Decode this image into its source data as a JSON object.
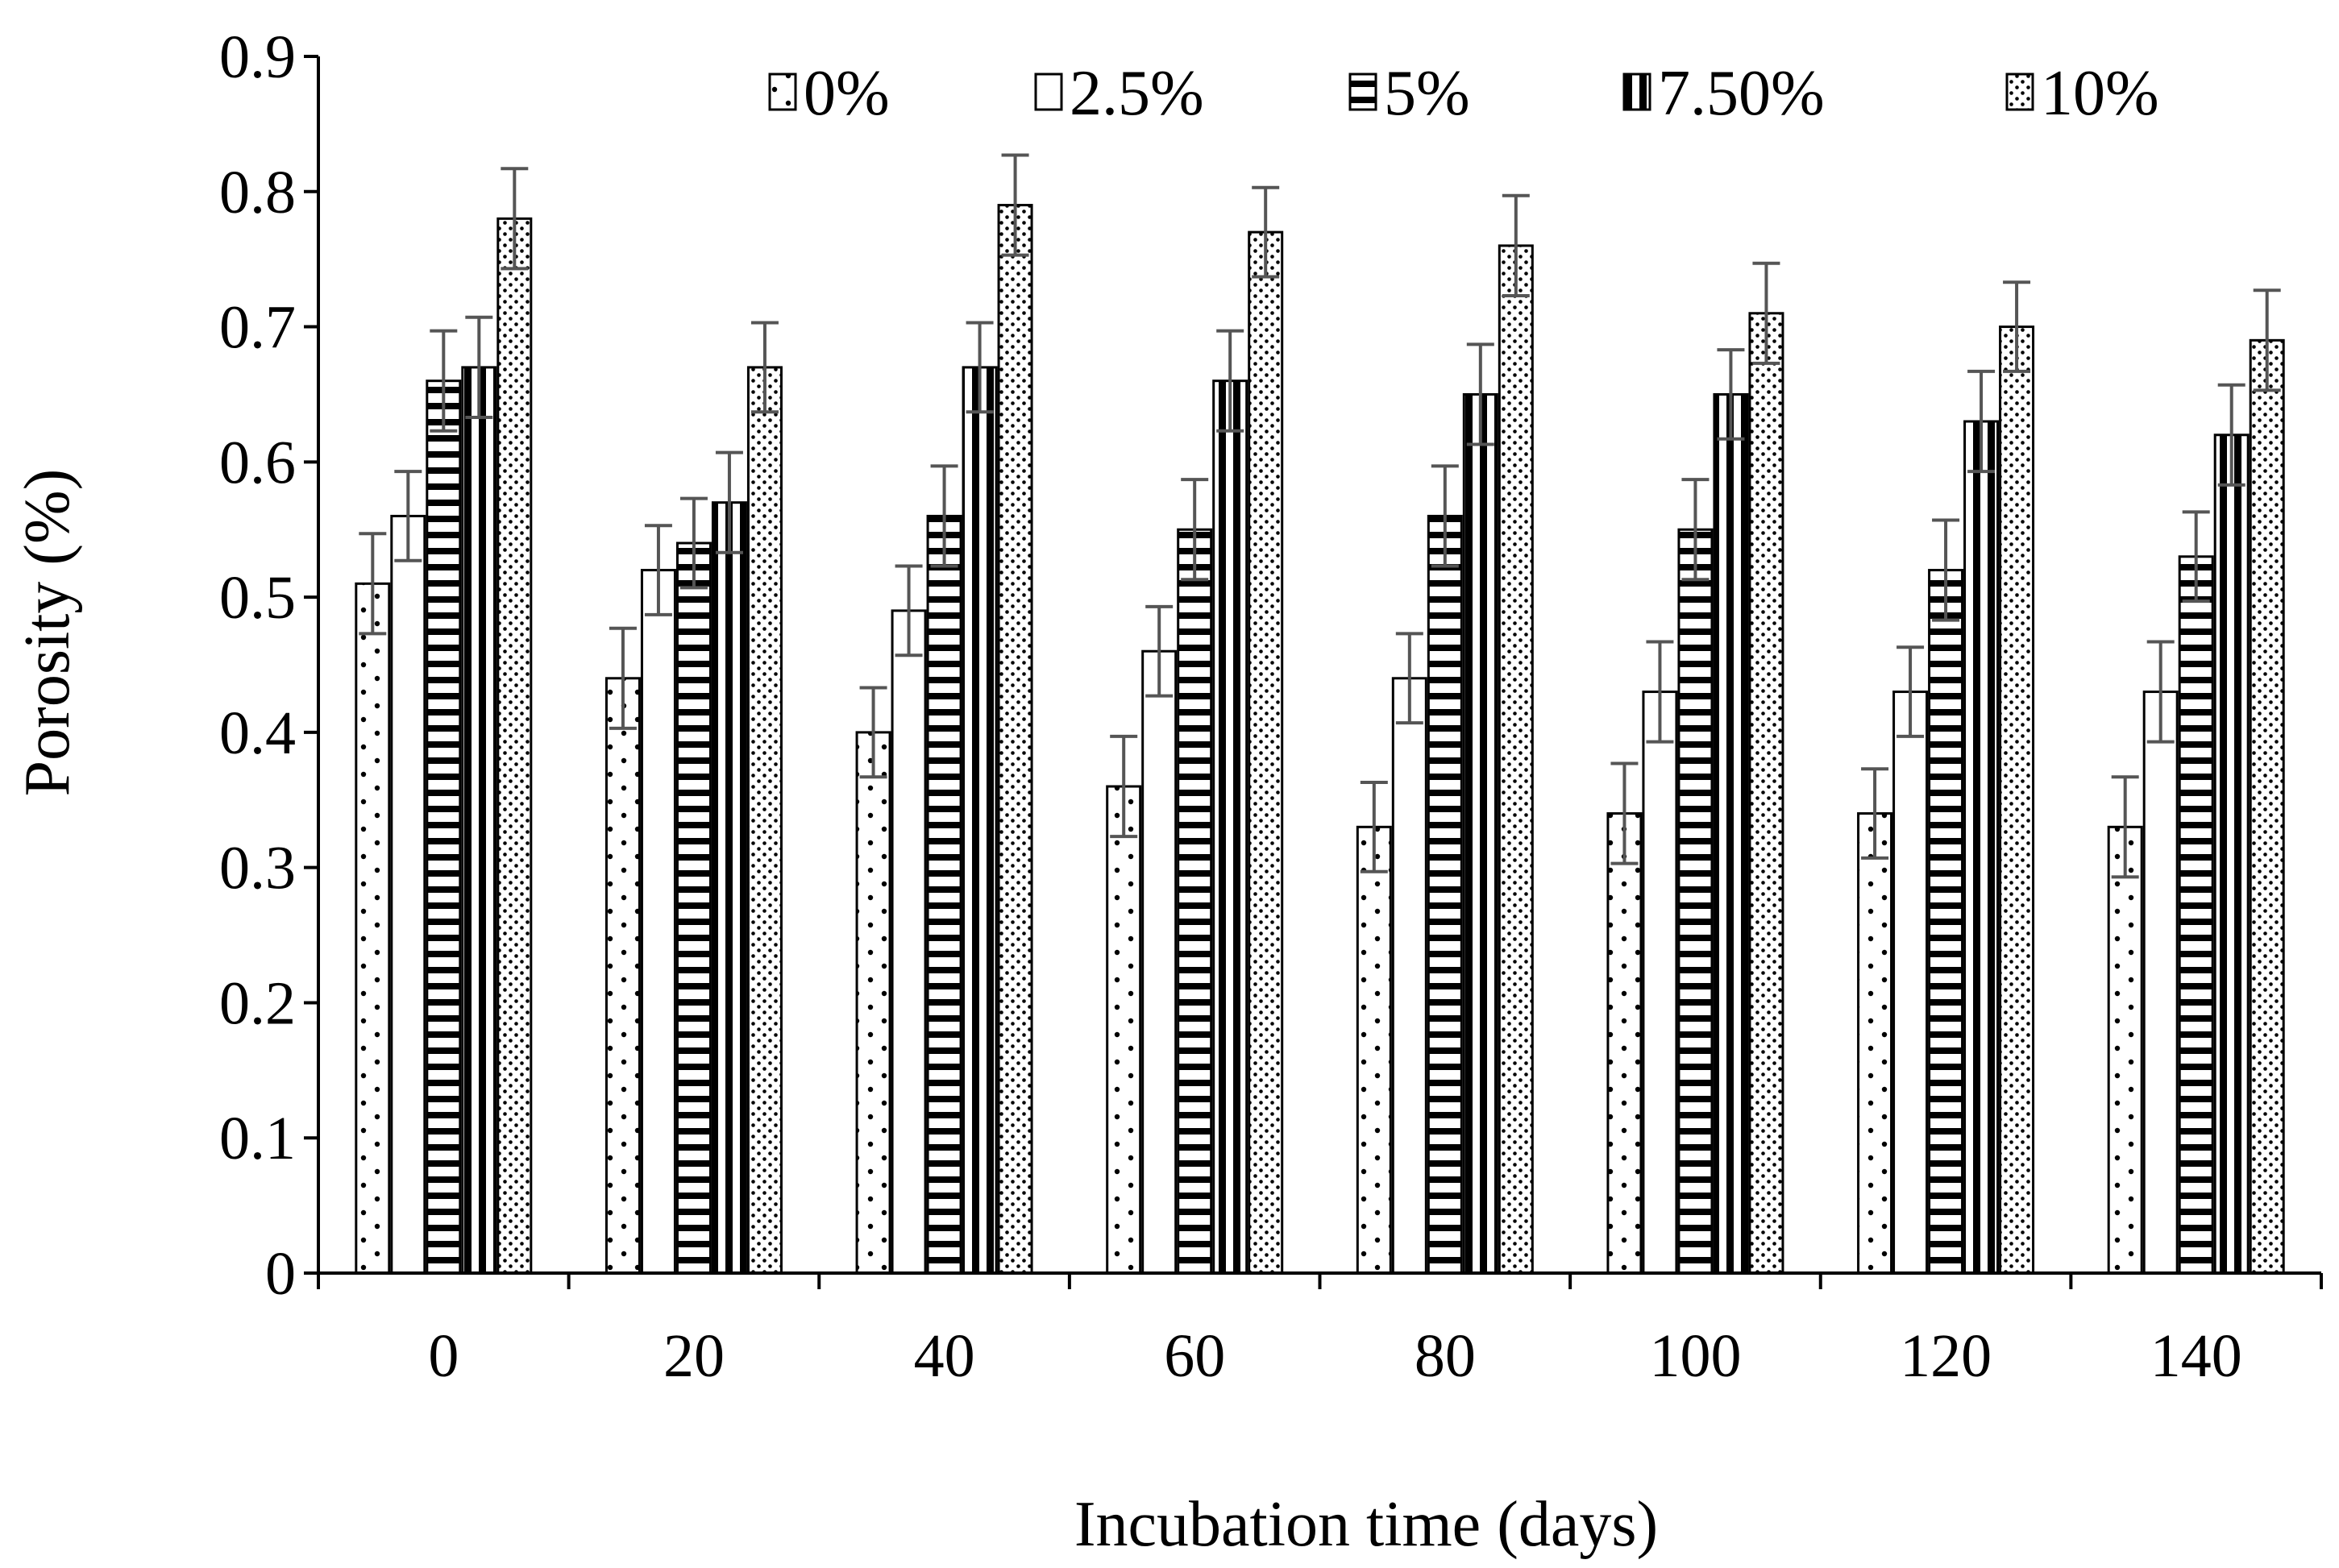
{
  "chart_data": {
    "type": "bar",
    "title": "",
    "xlabel": "Incubation time (days)",
    "ylabel": "Porosity (%)",
    "categories": [
      "0",
      "20",
      "40",
      "60",
      "80",
      "100",
      "120",
      "140"
    ],
    "ylim": [
      0,
      0.9
    ],
    "yticks": [
      "0",
      "0.1",
      "0.2",
      "0.3",
      "0.4",
      "0.5",
      "0.6",
      "0.7",
      "0.8",
      "0.9"
    ],
    "grid": false,
    "legend_position": "top",
    "error_bars": true,
    "series": [
      {
        "name": "0%",
        "pattern": "dots-sparse",
        "values": [
          0.51,
          0.44,
          0.4,
          0.36,
          0.33,
          0.34,
          0.34,
          0.33
        ],
        "errors": [
          0.037,
          0.037,
          0.033,
          0.037,
          0.033,
          0.037,
          0.033,
          0.037
        ]
      },
      {
        "name": "2.5%",
        "pattern": "none",
        "values": [
          0.56,
          0.52,
          0.49,
          0.46,
          0.44,
          0.43,
          0.43,
          0.43
        ],
        "errors": [
          0.033,
          0.033,
          0.033,
          0.033,
          0.033,
          0.037,
          0.033,
          0.037
        ]
      },
      {
        "name": "5%",
        "pattern": "horizontal-stripes",
        "values": [
          0.66,
          0.54,
          0.56,
          0.55,
          0.56,
          0.55,
          0.52,
          0.53
        ],
        "errors": [
          0.037,
          0.033,
          0.037,
          0.037,
          0.037,
          0.037,
          0.037,
          0.033
        ]
      },
      {
        "name": "7.50%",
        "pattern": "vertical-stripes",
        "values": [
          0.67,
          0.57,
          0.67,
          0.66,
          0.65,
          0.65,
          0.63,
          0.62
        ],
        "errors": [
          0.037,
          0.037,
          0.033,
          0.037,
          0.037,
          0.033,
          0.037,
          0.037
        ]
      },
      {
        "name": "10%",
        "pattern": "dots-dense",
        "values": [
          0.78,
          0.67,
          0.79,
          0.77,
          0.76,
          0.71,
          0.7,
          0.69
        ],
        "errors": [
          0.037,
          0.033,
          0.037,
          0.033,
          0.037,
          0.037,
          0.033,
          0.037
        ]
      }
    ],
    "colors": {
      "bar_stroke": "#000000",
      "error_bar": "#555555",
      "bar_fill": "#ffffff"
    }
  }
}
